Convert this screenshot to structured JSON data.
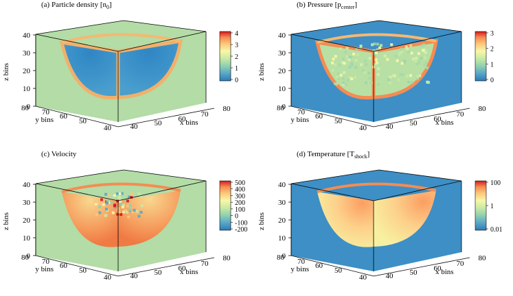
{
  "colors": {
    "cb_stops": [
      "#2c7bb6",
      "#5aa6c8",
      "#8fd0b0",
      "#c8e9a4",
      "#f7f7a8",
      "#fdc77a",
      "#f58c52",
      "#d7191c"
    ],
    "face_green": "#b3dca6",
    "face_blue": "#3d8fc6",
    "shell_orange": "#f58c52",
    "cavity_blue": "#3a8fc8",
    "interior_warm": "#fdc77a",
    "axis": "#000000"
  },
  "chart_data": [
    {
      "type": "heatmap",
      "title": "(a) Particle density [n",
      "title_sub": "0",
      "title_end": "]",
      "xlabel": "x bins",
      "ylabel": "y bins",
      "zlabel": "z bins",
      "x_ticks": [
        "40",
        "50",
        "60",
        "70",
        "80"
      ],
      "y_ticks": [
        "40",
        "50",
        "60",
        "70",
        "80"
      ],
      "z_ticks": [
        "0",
        "10",
        "20",
        "30",
        "40"
      ],
      "colorbar_ticks": [
        "4",
        "3",
        "2",
        "1",
        "0"
      ],
      "background": "green",
      "interior": "cavity"
    },
    {
      "type": "heatmap",
      "title": "(b) Pressure [p",
      "title_sub": "center",
      "title_end": "]",
      "xlabel": "x bins",
      "ylabel": "y bins",
      "zlabel": "z bins",
      "x_ticks": [
        "40",
        "50",
        "60",
        "70",
        "80"
      ],
      "y_ticks": [
        "40",
        "50",
        "60",
        "70",
        "80"
      ],
      "z_ticks": [
        "0",
        "10",
        "20",
        "30",
        "40"
      ],
      "colorbar_ticks": [
        "3",
        "2",
        "1",
        "0"
      ],
      "background": "blue",
      "interior": "speckle"
    },
    {
      "type": "heatmap",
      "title": "(c) Velocity",
      "title_sub": "",
      "title_end": "",
      "xlabel": "x bins",
      "ylabel": "y bins",
      "zlabel": "z bins",
      "x_ticks": [
        "40",
        "50",
        "60",
        "70",
        "80"
      ],
      "y_ticks": [
        "40",
        "50",
        "60",
        "70",
        "80"
      ],
      "z_ticks": [
        "0",
        "10",
        "20",
        "30",
        "40"
      ],
      "colorbar_ticks": [
        "500",
        "400",
        "300",
        "200",
        "100",
        "0",
        "-100",
        "-200"
      ],
      "background": "green",
      "interior": "noisy"
    },
    {
      "type": "heatmap",
      "title": "(d) Temperature [T",
      "title_sub": "shock",
      "title_end": "]",
      "xlabel": "x bins",
      "ylabel": "y bins",
      "zlabel": "z bins",
      "x_ticks": [
        "40",
        "50",
        "60",
        "70",
        "80"
      ],
      "y_ticks": [
        "40",
        "50",
        "60",
        "70",
        "80"
      ],
      "z_ticks": [
        "0",
        "10",
        "20",
        "30",
        "40"
      ],
      "colorbar_ticks": [
        "100",
        "1",
        "0.01"
      ],
      "background": "blue",
      "interior": "warm"
    }
  ]
}
